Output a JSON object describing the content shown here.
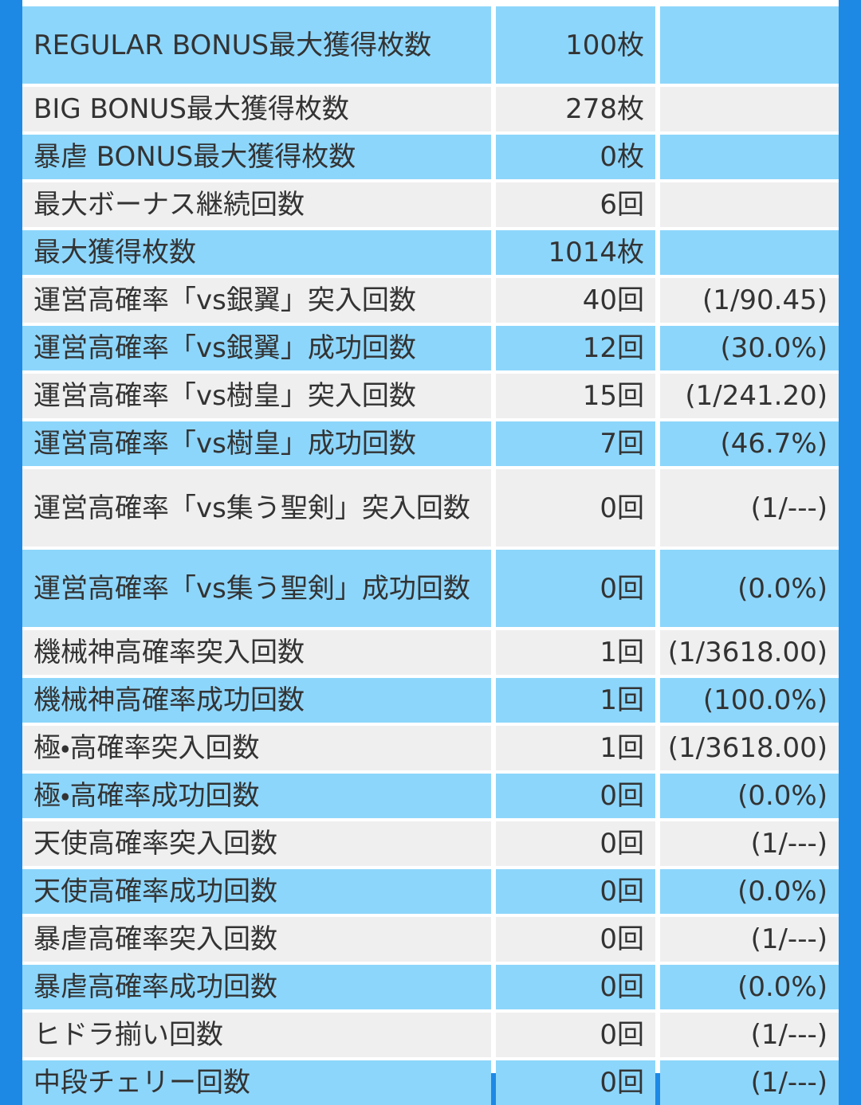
{
  "table": {
    "rows": [
      [
        "REGULAR BONUS最大獲得枚数",
        "100枚"
      ],
      [
        "BIG BONUS最大獲得枚数",
        "278枚"
      ],
      [
        "暴虐 BONUS最大獲得枚数",
        "0枚"
      ],
      [
        "最大ボーナス継続回数",
        "6回"
      ],
      [
        "最大獲得枚数",
        "1014枚"
      ],
      [
        "運営高確率「vs銀翼」突入回数",
        "40回",
        "(1/90.45)"
      ],
      [
        "運営高確率「vs銀翼」成功回数",
        "12回",
        "(30.0%)"
      ],
      [
        "運営高確率「vs樹皇」突入回数",
        "15回",
        "(1/241.20)"
      ],
      [
        "運営高確率「vs樹皇」成功回数",
        "7回",
        "(46.7%)"
      ],
      [
        "運営高確率「vs集う聖剣」突入回数",
        "0回",
        "(1/---)"
      ],
      [
        "運営高確率「vs集う聖剣」成功回数",
        "0回",
        "(0.0%)"
      ],
      [
        "機械神高確率突入回数",
        "1回",
        "(1/3618.00)"
      ],
      [
        "機械神高確率成功回数",
        "1回",
        "(100.0%)"
      ],
      [
        "極・高確率突入回数",
        "1回",
        "(1/3618.00)"
      ],
      [
        "極・高確率成功回数",
        "0回",
        "(0.0%)"
      ],
      [
        "天使高確率突入回数",
        "0回",
        "(1/---)"
      ],
      [
        "天使高確率成功回数",
        "0回",
        "(0.0%)"
      ],
      [
        "暴虐高確率突入回数",
        "0回",
        "(1/---)"
      ],
      [
        "暴虐高確率成功回数",
        "0回",
        "(0.0%)"
      ],
      [
        "ヒドラ揃い回数",
        "0回",
        "(1/---)"
      ],
      [
        "中段チェリー回数",
        "0回",
        "(1/---)"
      ]
    ]
  }
}
